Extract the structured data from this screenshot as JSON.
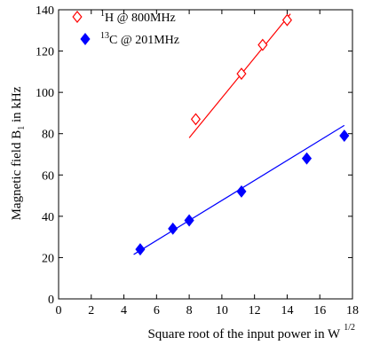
{
  "chart_data": {
    "type": "scatter",
    "title": "",
    "xlabel": "Square root of  the input power in W",
    "xlabel_sup": "1/2",
    "ylabel": "Magnetic field B",
    "ylabel_sub": "1",
    "ylabel_suffix": " in kHz",
    "xlim": [
      0,
      18
    ],
    "ylim": [
      0,
      140
    ],
    "xticks": [
      0,
      2,
      4,
      6,
      8,
      10,
      12,
      14,
      16,
      18
    ],
    "yticks": [
      0,
      20,
      40,
      60,
      80,
      100,
      120,
      140
    ],
    "grid": false,
    "legend_position": "top-left",
    "series": [
      {
        "name": "1H @ 800MHz",
        "legend_sup": "1",
        "legend_text": "H   @ 800MHz",
        "color": "#ff0000",
        "marker": "diamond-open",
        "points": [
          [
            8.4,
            87
          ],
          [
            11.2,
            109
          ],
          [
            12.5,
            123
          ],
          [
            14.0,
            135
          ]
        ],
        "fit": [
          [
            8.0,
            78
          ],
          [
            14.2,
            138
          ]
        ]
      },
      {
        "name": "13C @ 201MHz",
        "legend_sup": "13",
        "legend_text": "C @ 201MHz",
        "color": "#0000ff",
        "marker": "diamond-filled",
        "points": [
          [
            5.0,
            24
          ],
          [
            7.0,
            34
          ],
          [
            8.0,
            38
          ],
          [
            11.2,
            52
          ],
          [
            15.2,
            68
          ],
          [
            17.5,
            79
          ]
        ],
        "fit": [
          [
            4.6,
            21.5
          ],
          [
            17.5,
            84
          ]
        ]
      }
    ]
  }
}
